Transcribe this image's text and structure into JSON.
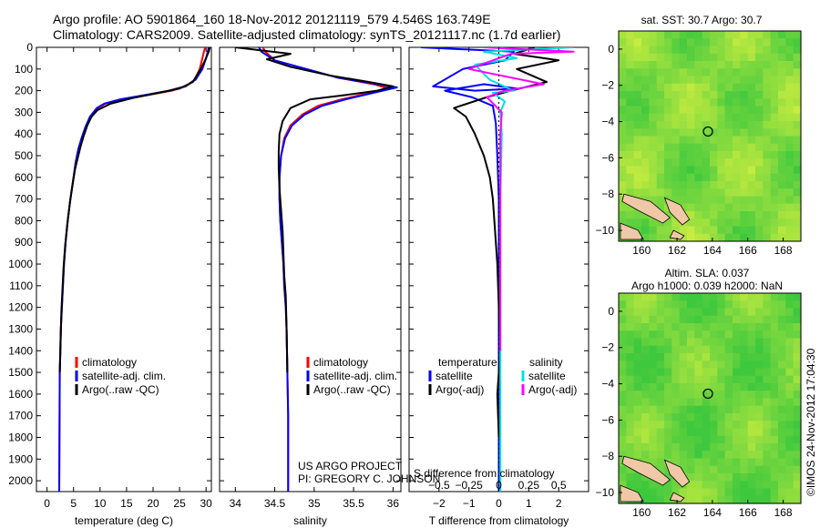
{
  "header": {
    "line1": "Argo profile: AO 5901864_160 18-Nov-2012 20121119_579 4.546S 163.749E",
    "line2": "Climatology: CARS2009. Satellite-adjusted climatology: synTS_20121117.nc (1.7d earlier)"
  },
  "footer": {
    "stamp": "©IMOS 24-Nov-2012 17:04:30"
  },
  "colors": {
    "climatology": "#ff0000",
    "satellite": "#0000ff",
    "argo": "#000000",
    "sat_salinity": "#00e0e0",
    "argo_salinity": "#ff00ff",
    "map_green": "#3ec83e",
    "map_yellow": "#d8f040",
    "land": "#f0c8a8"
  },
  "chart_data": [
    {
      "type": "line",
      "xlabel": "temperature (deg C)",
      "xlim": [
        -2,
        31
      ],
      "ylim": [
        0,
        2050
      ],
      "xticks": [
        0,
        5,
        10,
        15,
        20,
        25,
        30
      ],
      "yticks": [
        0,
        100,
        200,
        300,
        400,
        500,
        600,
        700,
        800,
        900,
        1000,
        1100,
        1200,
        1300,
        1400,
        1500,
        1600,
        1700,
        1800,
        1900,
        2000
      ],
      "legend": [
        "climatology",
        "satellite-adj. clim.",
        "Argo(..raw -QC)"
      ],
      "series": [
        {
          "name": "climatology",
          "color": "#ff0000",
          "x": [
            29.8,
            29.6,
            29.3,
            28.8,
            27.8,
            26.2,
            23.5,
            19.0,
            14.0,
            11.0,
            9.6,
            8.3,
            7.3,
            6.5,
            5.9,
            5.4,
            5.0,
            4.4,
            3.9,
            3.5,
            3.2,
            3.0,
            2.8,
            2.6,
            2.5,
            2.4,
            2.3
          ],
          "y": [
            0,
            20,
            50,
            100,
            150,
            180,
            200,
            220,
            240,
            260,
            280,
            320,
            370,
            420,
            470,
            530,
            600,
            700,
            800,
            900,
            1000,
            1100,
            1200,
            1300,
            1400,
            1500,
            2050
          ]
        },
        {
          "name": "satellite-adj. clim.",
          "color": "#0000ff",
          "x": [
            30.5,
            30.3,
            30.0,
            29.3,
            28.0,
            26.0,
            23.0,
            18.5,
            13.8,
            10.8,
            9.4,
            8.1,
            7.2,
            6.5,
            5.9,
            5.4,
            5.0,
            4.4,
            3.9,
            3.5,
            3.2,
            3.0,
            2.8,
            2.6,
            2.5,
            2.4,
            2.3
          ],
          "y": [
            0,
            20,
            50,
            100,
            150,
            180,
            200,
            220,
            240,
            260,
            280,
            320,
            370,
            420,
            470,
            530,
            600,
            700,
            800,
            900,
            1000,
            1100,
            1200,
            1300,
            1400,
            1500,
            2050
          ]
        },
        {
          "name": "Argo(..raw -QC)",
          "color": "#000000",
          "x": [
            30.7,
            30.5,
            30.0,
            29.0,
            27.5,
            25.0,
            21.0,
            16.0,
            12.0,
            9.5,
            8.4,
            7.6,
            6.9,
            6.3,
            5.8,
            5.3,
            4.9,
            4.3,
            3.8,
            3.4,
            3.1,
            2.9,
            2.7,
            2.6,
            2.5,
            2.4
          ],
          "y": [
            0,
            20,
            50,
            100,
            160,
            190,
            210,
            235,
            260,
            290,
            320,
            360,
            410,
            460,
            510,
            560,
            620,
            720,
            820,
            920,
            1020,
            1120,
            1220,
            1320,
            1420,
            1500
          ]
        }
      ]
    },
    {
      "type": "line",
      "xlabel": "salinity",
      "xlim": [
        33.8,
        36.1
      ],
      "ylim": [
        0,
        2050
      ],
      "xticks": [
        34,
        34.5,
        35,
        35.5,
        36
      ],
      "xticklabels": [
        "34",
        "34.5",
        "35",
        "35.5",
        "36"
      ],
      "legend": [
        "climatology",
        "satellite-adj. clim.",
        "Argo(..raw -QC)"
      ],
      "annotation": [
        "US ARGO PROJECT",
        "PI: GREGORY C. JOHNSON"
      ],
      "series": [
        {
          "name": "climatology",
          "color": "#ff0000",
          "x": [
            34.35,
            34.38,
            34.5,
            34.9,
            35.3,
            35.75,
            35.95,
            35.7,
            35.35,
            35.05,
            34.85,
            34.7,
            34.62,
            34.58,
            34.56,
            34.56,
            34.57,
            34.59,
            34.61,
            34.62,
            34.64,
            34.65,
            34.66,
            34.67,
            34.67
          ],
          "y": [
            0,
            20,
            60,
            100,
            140,
            170,
            190,
            210,
            240,
            270,
            310,
            360,
            420,
            500,
            600,
            700,
            800,
            900,
            1000,
            1100,
            1200,
            1300,
            1500,
            1700,
            2050
          ]
        },
        {
          "name": "satellite-adj. clim.",
          "color": "#0000ff",
          "x": [
            34.3,
            34.33,
            34.5,
            34.9,
            35.3,
            35.8,
            36.05,
            35.75,
            35.4,
            35.1,
            34.88,
            34.72,
            34.63,
            34.58,
            34.56,
            34.56,
            34.57,
            34.59,
            34.61,
            34.62,
            34.64,
            34.65,
            34.66,
            34.67,
            34.67
          ],
          "y": [
            0,
            20,
            60,
            100,
            140,
            170,
            185,
            210,
            240,
            270,
            310,
            360,
            420,
            500,
            600,
            700,
            800,
            900,
            1000,
            1100,
            1200,
            1300,
            1500,
            1700,
            2050
          ]
        },
        {
          "name": "Argo(..raw -QC)",
          "color": "#000000",
          "x": [
            34.0,
            34.7,
            34.4,
            34.7,
            35.2,
            35.7,
            36.0,
            35.8,
            35.4,
            34.95,
            34.7,
            34.6,
            34.56,
            34.55,
            34.55,
            34.56,
            34.58,
            34.6,
            34.61,
            34.62,
            34.64,
            34.65,
            34.66
          ],
          "y": [
            0,
            30,
            55,
            90,
            130,
            160,
            180,
            200,
            220,
            240,
            280,
            340,
            400,
            480,
            560,
            650,
            750,
            850,
            950,
            1050,
            1150,
            1300,
            1500
          ]
        }
      ]
    },
    {
      "type": "line",
      "xlabel": "T difference from climatology",
      "xlabel2": "S difference from climatology",
      "xlim": [
        -3,
        3
      ],
      "ylim": [
        0,
        2050
      ],
      "xticks": [
        -2,
        -1,
        0,
        1,
        2
      ],
      "xticklabels": [
        "−2",
        "−1",
        "0",
        "1",
        "2"
      ],
      "xticks2": [
        -0.5,
        -0.25,
        0,
        0.25,
        0.5
      ],
      "xticklabels2": [
        "−0.5",
        "−0.25",
        "0",
        "0.25",
        "0.5"
      ],
      "legend_left_title": "temperature",
      "legend_right_title": "salinity",
      "legend": [
        "satellite",
        "Argo(-adj)",
        "satellite",
        "Argo(-adj)"
      ],
      "series": [
        {
          "name": "satellite",
          "color": "#0000ff",
          "x": [
            -2.6,
            0.5,
            0.2,
            -1.2,
            -2.2,
            -0.8,
            0.6,
            -0.5,
            -1.8,
            -0.9,
            -0.2,
            -0.1,
            -0.05,
            0,
            0,
            0,
            0,
            0,
            0,
            0
          ],
          "y": [
            0,
            20,
            60,
            100,
            180,
            200,
            190,
            170,
            200,
            230,
            270,
            350,
            500,
            700,
            900,
            1100,
            1300,
            1500,
            1800,
            2050
          ]
        },
        {
          "name": "Argo(-adj)",
          "color": "#000000",
          "x": [
            1.2,
            0.5,
            2.0,
            0.6,
            1.6,
            0.4,
            -0.4,
            -1.5,
            -1.1,
            -0.8,
            -0.5,
            -0.3,
            -0.2,
            -0.15,
            -0.1,
            -0.05,
            0,
            0.05,
            -0.05,
            0
          ],
          "y": [
            0,
            30,
            60,
            100,
            160,
            200,
            230,
            280,
            320,
            400,
            500,
            600,
            700,
            800,
            900,
            1000,
            1200,
            1400,
            1600,
            1800
          ]
        },
        {
          "name": "satellite",
          "color": "#00e0e0",
          "x": [
            2.5,
            -0.5,
            0.6,
            -0.8,
            -0.3,
            0.5,
            -0.2,
            0.2,
            0.05,
            0.1,
            0.05,
            0.05,
            0.05,
            0.05,
            0.05
          ],
          "y": [
            0,
            20,
            50,
            80,
            150,
            200,
            210,
            250,
            300,
            400,
            700,
            1000,
            1400,
            1800,
            2050
          ]
        },
        {
          "name": "Argo(-adj)",
          "color": "#ff00ff",
          "x": [
            -0.5,
            2.5,
            0.4,
            -1.0,
            1.5,
            0.2,
            -0.4,
            0.1,
            0.05,
            0.05,
            0.05,
            0.05
          ],
          "y": [
            0,
            20,
            30,
            100,
            170,
            200,
            230,
            300,
            400,
            600,
            900,
            1400
          ]
        }
      ]
    },
    {
      "type": "heatmap",
      "title": "sat. SST: 30.7 Argo: 30.7",
      "xlim": [
        158.7,
        169
      ],
      "ylim": [
        -10.6,
        1
      ],
      "xticks": [
        160,
        162,
        164,
        166,
        168
      ],
      "yticks": [
        0,
        -2,
        -4,
        -6,
        -8,
        -10
      ],
      "yticklabels": [
        "0",
        "−2",
        "−4",
        "−6",
        "−8",
        "−10"
      ],
      "marker": {
        "lon": 163.749,
        "lat": -4.546
      }
    },
    {
      "type": "heatmap",
      "title": "Altim. SLA: 0.037",
      "subtitle": "Argo h1000: 0.039 h2000: NaN",
      "xlim": [
        158.7,
        169
      ],
      "ylim": [
        -10.6,
        1
      ],
      "xticks": [
        160,
        162,
        164,
        166,
        168
      ],
      "yticks": [
        0,
        -2,
        -4,
        -6,
        -8,
        -10
      ],
      "yticklabels": [
        "0",
        "−2",
        "−4",
        "−6",
        "−8",
        "−10"
      ],
      "marker": {
        "lon": 163.749,
        "lat": -4.546
      }
    }
  ]
}
